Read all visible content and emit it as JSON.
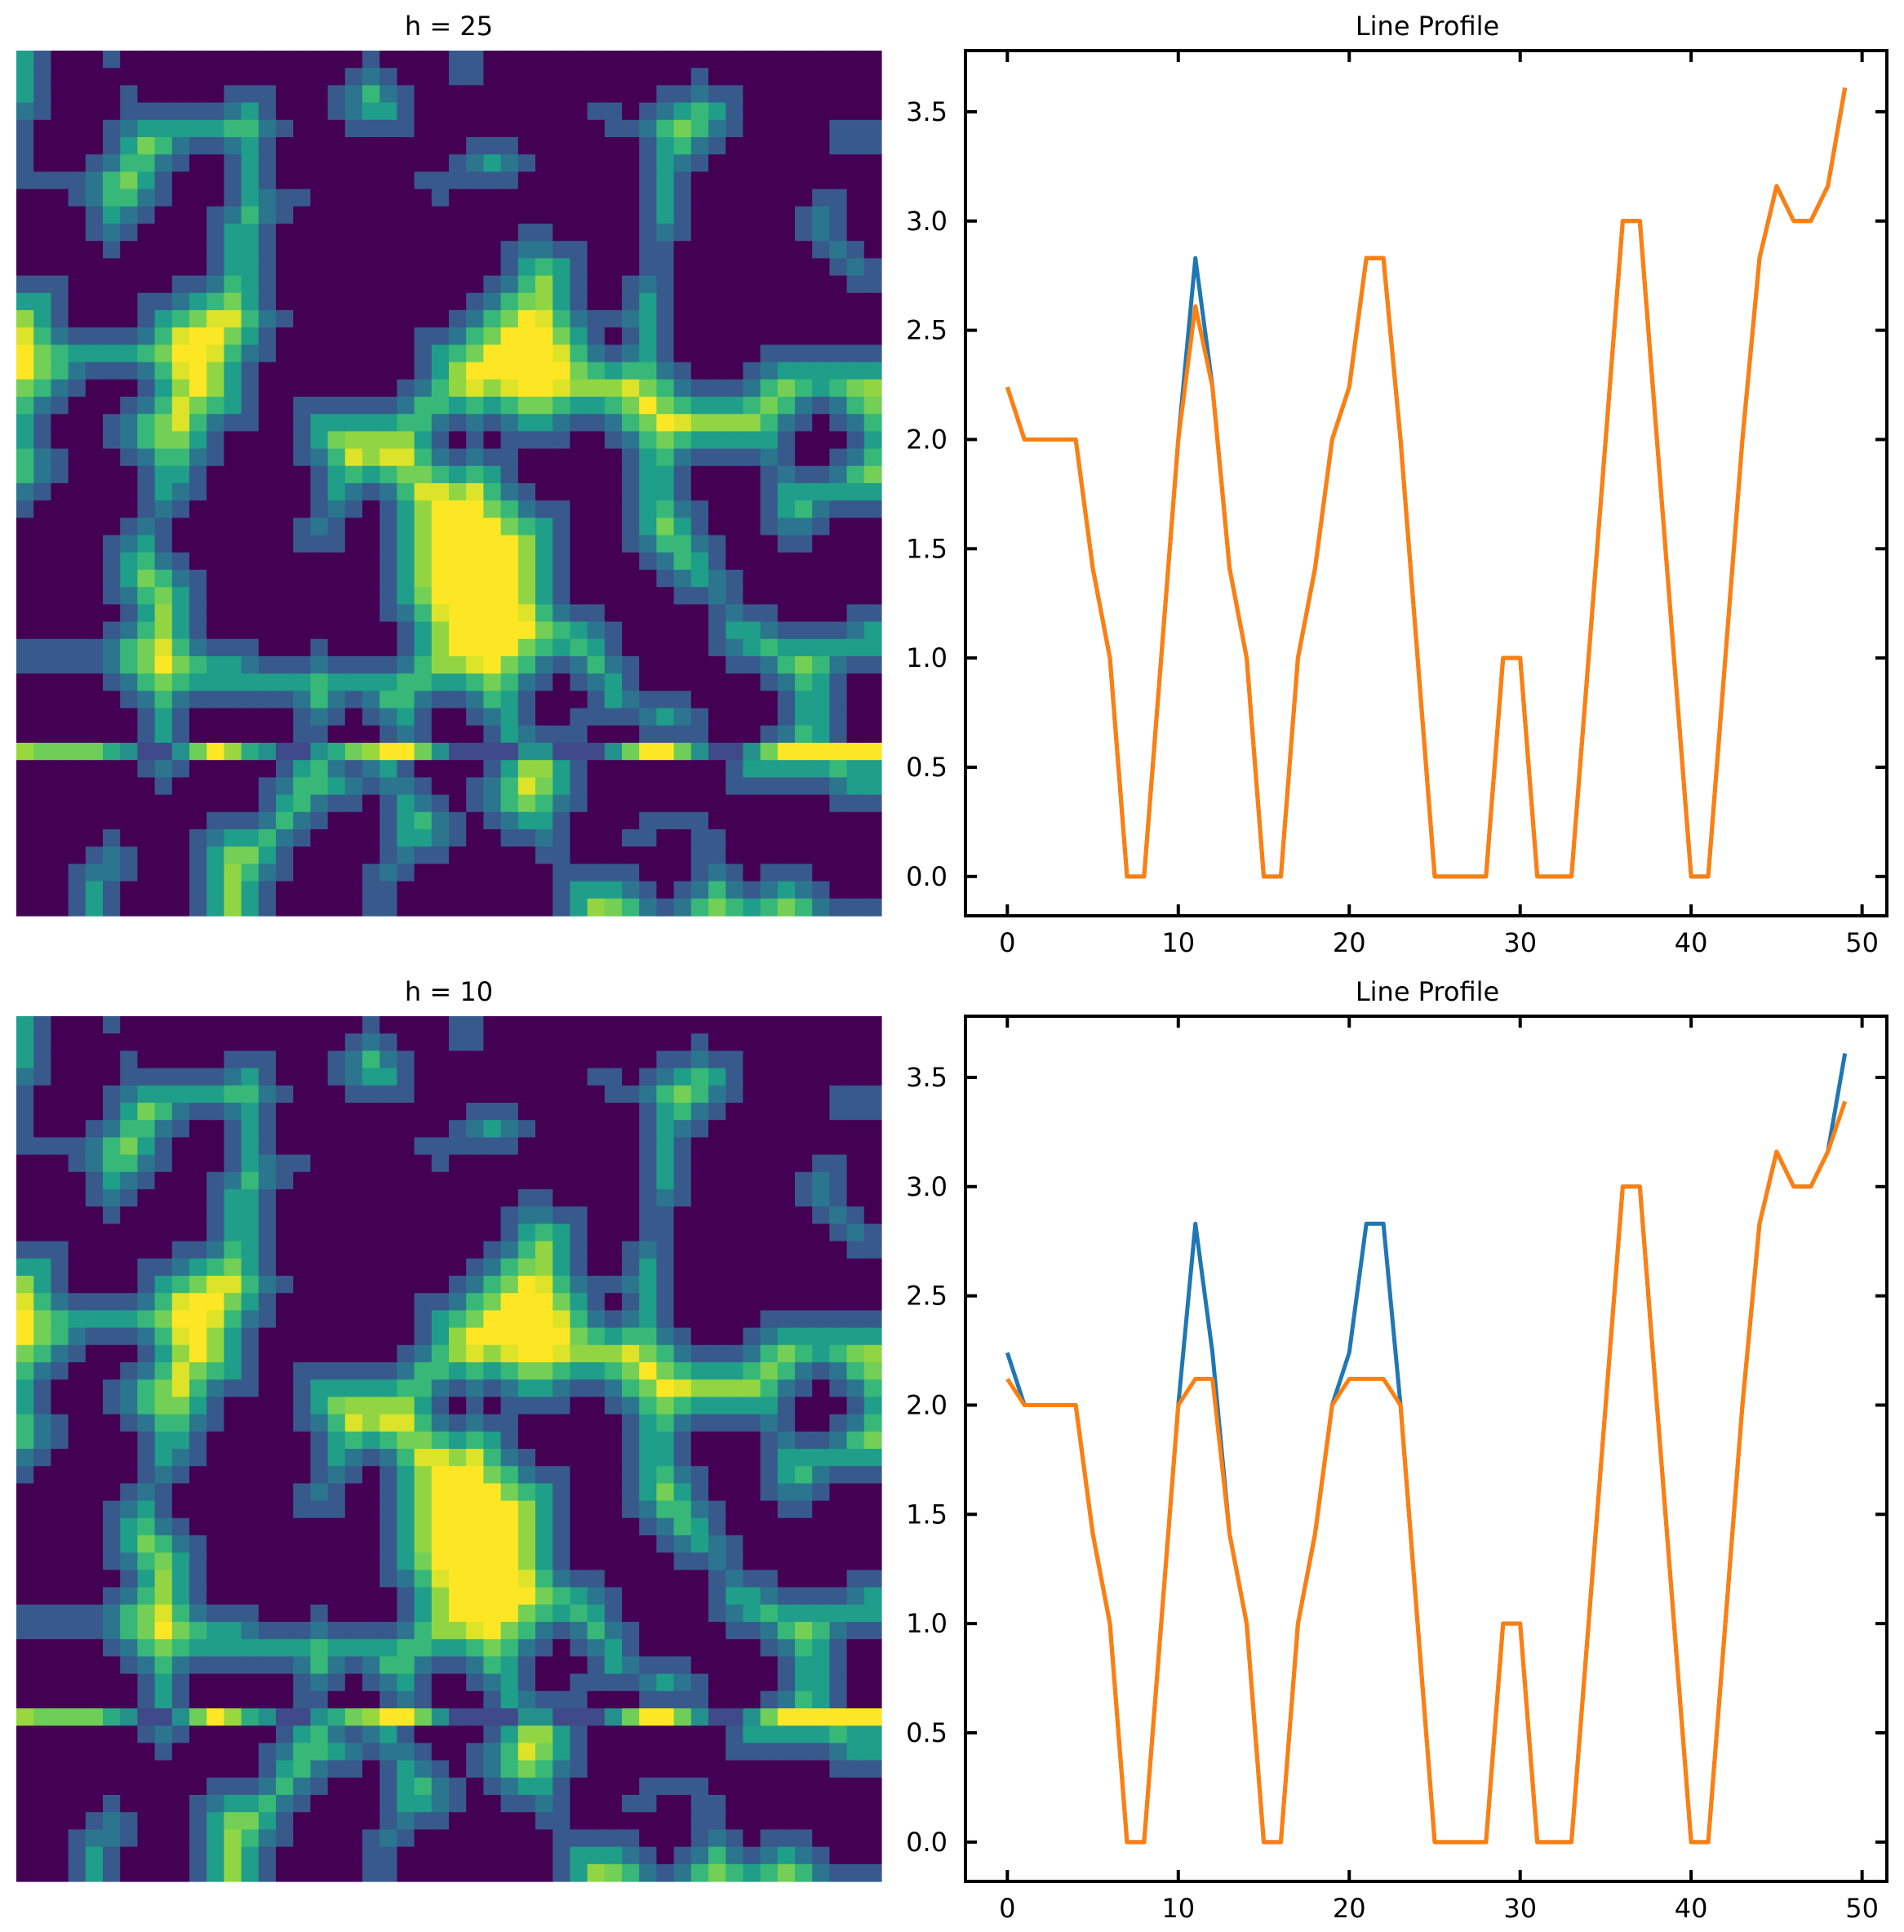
{
  "chart_data": [
    {
      "type": "heatmap",
      "title": "h = 25",
      "rows": 50,
      "cols": 50,
      "colormap": "viridis",
      "value_range": [
        0,
        3.6
      ],
      "highlight_row": 40,
      "axes_visible": false,
      "grid": false
    },
    {
      "type": "line",
      "title": "Line Profile",
      "xlabel": "",
      "ylabel": "",
      "xlim": [
        -2.45,
        51.45
      ],
      "ylim": [
        -0.18,
        3.78
      ],
      "xticks": [
        0,
        10,
        20,
        30,
        40,
        50
      ],
      "yticks": [
        0.0,
        0.5,
        1.0,
        1.5,
        2.0,
        2.5,
        3.0,
        3.5
      ],
      "grid": false,
      "series": [
        {
          "color": "#1f77b4",
          "x": [
            0,
            1,
            2,
            3,
            4,
            5,
            6,
            7,
            8,
            9,
            10,
            11,
            12,
            13,
            14,
            15,
            16,
            17,
            18,
            19,
            20,
            21,
            22,
            23,
            24,
            25,
            26,
            27,
            28,
            29,
            30,
            31,
            32,
            33,
            34,
            35,
            36,
            37,
            38,
            39,
            40,
            41,
            42,
            43,
            44,
            45,
            46,
            47,
            48,
            49
          ],
          "values": [
            2.24,
            2.0,
            2.0,
            2.0,
            2.0,
            1.41,
            1.0,
            0.0,
            0.0,
            1.0,
            2.0,
            2.83,
            2.24,
            1.41,
            1.0,
            0.0,
            0.0,
            1.0,
            1.41,
            2.0,
            2.24,
            2.83,
            2.83,
            2.0,
            1.0,
            0.0,
            0.0,
            0.0,
            0.0,
            1.0,
            1.0,
            0.0,
            0.0,
            0.0,
            1.0,
            2.0,
            3.0,
            3.0,
            2.0,
            1.0,
            0.0,
            0.0,
            1.0,
            2.0,
            2.83,
            3.16,
            3.0,
            3.0,
            3.16,
            3.61
          ]
        },
        {
          "color": "#ff7f0e",
          "x": [
            0,
            1,
            2,
            3,
            4,
            5,
            6,
            7,
            8,
            9,
            10,
            11,
            12,
            13,
            14,
            15,
            16,
            17,
            18,
            19,
            20,
            21,
            22,
            23,
            24,
            25,
            26,
            27,
            28,
            29,
            30,
            31,
            32,
            33,
            34,
            35,
            36,
            37,
            38,
            39,
            40,
            41,
            42,
            43,
            44,
            45,
            46,
            47,
            48,
            49
          ],
          "values": [
            2.24,
            2.0,
            2.0,
            2.0,
            2.0,
            1.41,
            1.0,
            0.0,
            0.0,
            1.0,
            2.0,
            2.61,
            2.24,
            1.41,
            1.0,
            0.0,
            0.0,
            1.0,
            1.41,
            2.0,
            2.24,
            2.83,
            2.83,
            2.0,
            1.0,
            0.0,
            0.0,
            0.0,
            0.0,
            1.0,
            1.0,
            0.0,
            0.0,
            0.0,
            1.0,
            2.0,
            3.0,
            3.0,
            2.0,
            1.0,
            0.0,
            0.0,
            1.0,
            2.0,
            2.83,
            3.16,
            3.0,
            3.0,
            3.16,
            3.61
          ]
        }
      ]
    },
    {
      "type": "heatmap",
      "title": "h = 10",
      "rows": 50,
      "cols": 50,
      "colormap": "viridis",
      "value_range": [
        0,
        3.6
      ],
      "highlight_row": 40,
      "axes_visible": false,
      "grid": false
    },
    {
      "type": "line",
      "title": "Line Profile",
      "xlabel": "",
      "ylabel": "",
      "xlim": [
        -2.45,
        51.45
      ],
      "ylim": [
        -0.18,
        3.78
      ],
      "xticks": [
        0,
        10,
        20,
        30,
        40,
        50
      ],
      "yticks": [
        0.0,
        0.5,
        1.0,
        1.5,
        2.0,
        2.5,
        3.0,
        3.5
      ],
      "grid": false,
      "series": [
        {
          "color": "#1f77b4",
          "x": [
            0,
            1,
            2,
            3,
            4,
            5,
            6,
            7,
            8,
            9,
            10,
            11,
            12,
            13,
            14,
            15,
            16,
            17,
            18,
            19,
            20,
            21,
            22,
            23,
            24,
            25,
            26,
            27,
            28,
            29,
            30,
            31,
            32,
            33,
            34,
            35,
            36,
            37,
            38,
            39,
            40,
            41,
            42,
            43,
            44,
            45,
            46,
            47,
            48,
            49
          ],
          "values": [
            2.24,
            2.0,
            2.0,
            2.0,
            2.0,
            1.41,
            1.0,
            0.0,
            0.0,
            1.0,
            2.0,
            2.83,
            2.24,
            1.41,
            1.0,
            0.0,
            0.0,
            1.0,
            1.41,
            2.0,
            2.24,
            2.83,
            2.83,
            2.0,
            1.0,
            0.0,
            0.0,
            0.0,
            0.0,
            1.0,
            1.0,
            0.0,
            0.0,
            0.0,
            1.0,
            2.0,
            3.0,
            3.0,
            2.0,
            1.0,
            0.0,
            0.0,
            1.0,
            2.0,
            2.83,
            3.16,
            3.0,
            3.0,
            3.16,
            3.61
          ]
        },
        {
          "color": "#ff7f0e",
          "x": [
            0,
            1,
            2,
            3,
            4,
            5,
            6,
            7,
            8,
            9,
            10,
            11,
            12,
            13,
            14,
            15,
            16,
            17,
            18,
            19,
            20,
            21,
            22,
            23,
            24,
            25,
            26,
            27,
            28,
            29,
            30,
            31,
            32,
            33,
            34,
            35,
            36,
            37,
            38,
            39,
            40,
            41,
            42,
            43,
            44,
            45,
            46,
            47,
            48,
            49
          ],
          "values": [
            2.12,
            2.0,
            2.0,
            2.0,
            2.0,
            1.41,
            1.0,
            0.0,
            0.0,
            1.0,
            2.0,
            2.12,
            2.12,
            1.41,
            1.0,
            0.0,
            0.0,
            1.0,
            1.41,
            2.0,
            2.12,
            2.12,
            2.12,
            2.0,
            1.0,
            0.0,
            0.0,
            0.0,
            0.0,
            1.0,
            1.0,
            0.0,
            0.0,
            0.0,
            1.0,
            2.0,
            3.0,
            3.0,
            2.0,
            1.0,
            0.0,
            0.0,
            1.0,
            2.0,
            2.83,
            3.16,
            3.0,
            3.0,
            3.16,
            3.39
          ]
        }
      ]
    }
  ]
}
